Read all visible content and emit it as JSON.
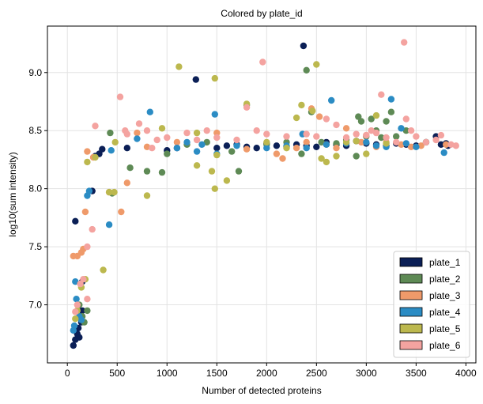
{
  "chart_data": {
    "type": "scatter",
    "title": "Colored by plate_id",
    "xlabel": "Number of detected proteins",
    "ylabel": "log10(sum intensity)",
    "xlim": [
      -200,
      4100
    ],
    "ylim": [
      6.5,
      9.4
    ],
    "xticks": [
      0,
      500,
      1000,
      1500,
      2000,
      2500,
      3000,
      3500,
      4000
    ],
    "yticks": [
      7.0,
      7.5,
      8.0,
      8.5,
      9.0
    ],
    "xtick_labels": [
      "0",
      "500",
      "1000",
      "1500",
      "2000",
      "2500",
      "3000",
      "3500",
      "4000"
    ],
    "ytick_labels": [
      "7.0",
      "7.5",
      "8.0",
      "8.5",
      "9.0"
    ],
    "grid": true,
    "legend_position": "lower-right",
    "series": [
      {
        "name": "plate_1",
        "color": "#0b1f56",
        "points": [
          [
            60,
            6.65
          ],
          [
            80,
            6.7
          ],
          [
            100,
            6.75
          ],
          [
            110,
            6.8
          ],
          [
            120,
            6.72
          ],
          [
            130,
            6.9
          ],
          [
            140,
            6.85
          ],
          [
            150,
            6.95
          ],
          [
            80,
            7.72
          ],
          [
            150,
            7.2
          ],
          [
            250,
            7.98
          ],
          [
            280,
            8.28
          ],
          [
            320,
            8.3
          ],
          [
            350,
            8.34
          ],
          [
            600,
            8.35
          ],
          [
            1000,
            8.33
          ],
          [
            1100,
            8.35
          ],
          [
            1290,
            8.94
          ],
          [
            1500,
            8.35
          ],
          [
            1600,
            8.37
          ],
          [
            1700,
            8.38
          ],
          [
            1800,
            8.36
          ],
          [
            1900,
            8.35
          ],
          [
            2000,
            8.39
          ],
          [
            2100,
            8.37
          ],
          [
            2200,
            8.36
          ],
          [
            2300,
            8.38
          ],
          [
            2370,
            9.23
          ],
          [
            2400,
            8.37
          ],
          [
            2500,
            8.36
          ],
          [
            2600,
            8.4
          ],
          [
            2700,
            8.38
          ],
          [
            2800,
            8.37
          ],
          [
            2900,
            8.41
          ],
          [
            3000,
            8.39
          ],
          [
            3100,
            8.38
          ],
          [
            3200,
            8.37
          ],
          [
            3300,
            8.39
          ],
          [
            3400,
            8.38
          ],
          [
            3500,
            8.37
          ],
          [
            3600,
            8.4
          ],
          [
            3700,
            8.45
          ],
          [
            3750,
            8.38
          ],
          [
            3800,
            8.39
          ],
          [
            3820,
            8.37
          ]
        ]
      },
      {
        "name": "plate_2",
        "color": "#5e8a55",
        "points": [
          [
            120,
            7.0
          ],
          [
            150,
            6.9
          ],
          [
            170,
            6.85
          ],
          [
            200,
            6.95
          ],
          [
            430,
            8.48
          ],
          [
            450,
            7.96
          ],
          [
            630,
            8.18
          ],
          [
            800,
            8.15
          ],
          [
            950,
            8.14
          ],
          [
            1000,
            8.3
          ],
          [
            1200,
            8.38
          ],
          [
            1400,
            8.4
          ],
          [
            1650,
            8.32
          ],
          [
            1720,
            8.15
          ],
          [
            1800,
            8.72
          ],
          [
            2000,
            8.38
          ],
          [
            2200,
            8.4
          ],
          [
            2350,
            8.3
          ],
          [
            2400,
            9.02
          ],
          [
            2450,
            8.66
          ],
          [
            2550,
            8.4
          ],
          [
            2700,
            8.39
          ],
          [
            2800,
            8.42
          ],
          [
            2900,
            8.28
          ],
          [
            2920,
            8.62
          ],
          [
            2950,
            8.58
          ],
          [
            3000,
            8.45
          ],
          [
            3050,
            8.6
          ],
          [
            3100,
            8.5
          ],
          [
            3150,
            8.44
          ],
          [
            3200,
            8.58
          ],
          [
            3250,
            8.66
          ],
          [
            3300,
            8.45
          ],
          [
            3400,
            8.5
          ],
          [
            3600,
            8.4
          ]
        ]
      },
      {
        "name": "plate_3",
        "color": "#ef9a6a",
        "points": [
          [
            60,
            7.42
          ],
          [
            100,
            7.42
          ],
          [
            140,
            7.45
          ],
          [
            160,
            7.48
          ],
          [
            180,
            7.8
          ],
          [
            200,
            8.32
          ],
          [
            260,
            8.27
          ],
          [
            420,
            7.97
          ],
          [
            540,
            7.8
          ],
          [
            600,
            8.05
          ],
          [
            700,
            8.48
          ],
          [
            800,
            8.36
          ],
          [
            1100,
            8.4
          ],
          [
            1500,
            8.48
          ],
          [
            1800,
            8.34
          ],
          [
            2100,
            8.3
          ],
          [
            2160,
            8.26
          ],
          [
            2300,
            8.35
          ],
          [
            2400,
            8.4
          ],
          [
            2450,
            8.69
          ],
          [
            2530,
            8.62
          ],
          [
            2600,
            8.38
          ],
          [
            2700,
            8.35
          ],
          [
            2800,
            8.52
          ],
          [
            2950,
            8.4
          ],
          [
            3000,
            8.46
          ],
          [
            3100,
            8.36
          ],
          [
            3200,
            8.4
          ],
          [
            3350,
            8.38
          ],
          [
            3450,
            8.36
          ],
          [
            3550,
            8.37
          ],
          [
            3800,
            8.38
          ]
        ]
      },
      {
        "name": "plate_4",
        "color": "#2b8cc4",
        "points": [
          [
            60,
            6.78
          ],
          [
            70,
            6.82
          ],
          [
            80,
            7.2
          ],
          [
            90,
            7.05
          ],
          [
            120,
            6.9
          ],
          [
            140,
            6.87
          ],
          [
            200,
            7.94
          ],
          [
            220,
            7.98
          ],
          [
            420,
            7.69
          ],
          [
            440,
            8.33
          ],
          [
            700,
            8.43
          ],
          [
            830,
            8.66
          ],
          [
            1100,
            8.35
          ],
          [
            1200,
            8.4
          ],
          [
            1300,
            8.32
          ],
          [
            1350,
            8.38
          ],
          [
            1480,
            8.64
          ],
          [
            1500,
            8.3
          ],
          [
            1700,
            8.37
          ],
          [
            2000,
            8.35
          ],
          [
            2200,
            8.37
          ],
          [
            2360,
            8.47
          ],
          [
            2400,
            8.35
          ],
          [
            2600,
            8.38
          ],
          [
            2650,
            8.76
          ],
          [
            2800,
            8.39
          ],
          [
            3000,
            8.4
          ],
          [
            3100,
            8.37
          ],
          [
            3200,
            8.36
          ],
          [
            3250,
            8.77
          ],
          [
            3350,
            8.52
          ],
          [
            3400,
            8.39
          ],
          [
            3500,
            8.36
          ],
          [
            3780,
            8.31
          ]
        ]
      },
      {
        "name": "plate_5",
        "color": "#bcb84e",
        "points": [
          [
            80,
            6.88
          ],
          [
            100,
            6.95
          ],
          [
            140,
            7.15
          ],
          [
            180,
            7.22
          ],
          [
            200,
            8.23
          ],
          [
            280,
            8.27
          ],
          [
            360,
            7.3
          ],
          [
            420,
            7.97
          ],
          [
            470,
            7.97
          ],
          [
            480,
            8.4
          ],
          [
            800,
            7.94
          ],
          [
            950,
            8.52
          ],
          [
            1120,
            9.05
          ],
          [
            1300,
            8.2
          ],
          [
            1300,
            8.48
          ],
          [
            1450,
            8.15
          ],
          [
            1480,
            8.95
          ],
          [
            1480,
            8.0
          ],
          [
            1500,
            8.29
          ],
          [
            1600,
            8.07
          ],
          [
            1800,
            8.73
          ],
          [
            2000,
            8.4
          ],
          [
            2200,
            8.35
          ],
          [
            2300,
            8.61
          ],
          [
            2350,
            8.72
          ],
          [
            2460,
            8.67
          ],
          [
            2500,
            9.07
          ],
          [
            2550,
            8.26
          ],
          [
            2600,
            8.23
          ],
          [
            2700,
            8.28
          ],
          [
            2800,
            8.4
          ],
          [
            2900,
            8.41
          ],
          [
            3000,
            8.3
          ],
          [
            3100,
            8.63
          ],
          [
            3200,
            8.39
          ]
        ]
      },
      {
        "name": "plate_6",
        "color": "#f4a3a0",
        "points": [
          [
            80,
            6.94
          ],
          [
            100,
            7.0
          ],
          [
            130,
            7.18
          ],
          [
            160,
            7.22
          ],
          [
            200,
            7.05
          ],
          [
            200,
            7.5
          ],
          [
            250,
            7.65
          ],
          [
            280,
            8.54
          ],
          [
            530,
            8.79
          ],
          [
            580,
            8.5
          ],
          [
            600,
            8.47
          ],
          [
            720,
            8.56
          ],
          [
            800,
            8.5
          ],
          [
            850,
            8.35
          ],
          [
            900,
            8.42
          ],
          [
            1000,
            8.44
          ],
          [
            1200,
            8.48
          ],
          [
            1300,
            8.42
          ],
          [
            1400,
            8.5
          ],
          [
            1500,
            8.44
          ],
          [
            1700,
            8.42
          ],
          [
            1800,
            8.7
          ],
          [
            1900,
            8.5
          ],
          [
            1960,
            9.09
          ],
          [
            2000,
            8.47
          ],
          [
            2200,
            8.45
          ],
          [
            2400,
            8.47
          ],
          [
            2500,
            8.45
          ],
          [
            2600,
            8.6
          ],
          [
            2700,
            8.55
          ],
          [
            2800,
            8.44
          ],
          [
            2900,
            8.47
          ],
          [
            3000,
            8.46
          ],
          [
            3050,
            8.5
          ],
          [
            3100,
            8.48
          ],
          [
            3150,
            8.81
          ],
          [
            3200,
            8.44
          ],
          [
            3300,
            8.4
          ],
          [
            3380,
            9.26
          ],
          [
            3400,
            8.6
          ],
          [
            3450,
            8.5
          ],
          [
            3500,
            8.45
          ],
          [
            3600,
            8.4
          ],
          [
            3700,
            8.42
          ],
          [
            3750,
            8.46
          ],
          [
            3850,
            8.38
          ],
          [
            3900,
            8.37
          ]
        ]
      }
    ]
  }
}
